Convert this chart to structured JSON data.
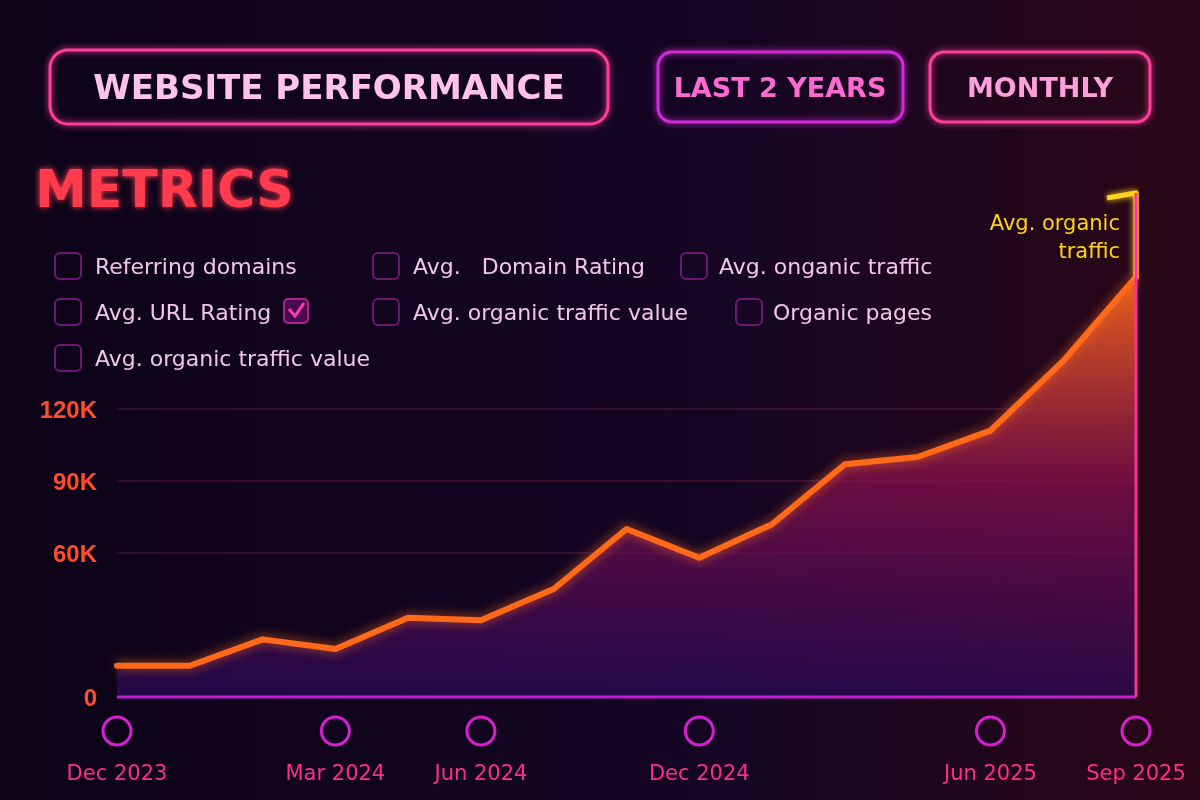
{
  "chart_data": {
    "type": "area",
    "title": "WEBSITE PERFORMANCE",
    "subtitle": "METRICS",
    "annotations": [
      "LAST 2 YEARS",
      "MONTHLY",
      "Referring domains",
      "Avg.   Domain Rating",
      "Avg. onganic traffic",
      "Avg. URL Rating",
      "Avg. organic traffic value",
      "Organic pages",
      "Avg. organic traffic value"
    ],
    "categories": [
      "Dec 2023",
      null,
      null,
      "Mar 2024",
      null,
      "Jun 2024",
      null,
      null,
      "Dec 2024",
      null,
      null,
      null,
      "Jun 2025",
      null,
      "Sep 2025"
    ],
    "series": [
      {
        "name": "Avg. organic traffic",
        "color": "#ff6a1a",
        "values": [
          13000,
          13000,
          24000,
          20000,
          33000,
          32000,
          45000,
          70000,
          58000,
          72000,
          97000,
          100000,
          111000,
          140000,
          175000
        ]
      }
    ],
    "ylim": [
      0,
      210000
    ],
    "yticks": [
      0,
      {
        "value": 60000,
        "label": "60K"
      },
      {
        "value": 90000,
        "label": "90K"
      },
      {
        "value": 120000,
        "label": "120K"
      }
    ],
    "grid": "y",
    "marker": "none",
    "line_style": "solid"
  }
}
